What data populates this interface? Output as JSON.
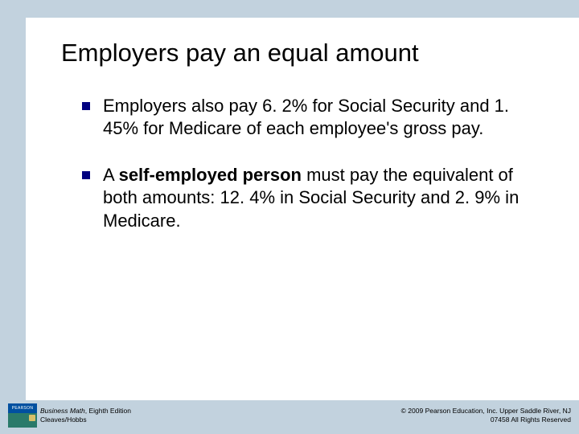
{
  "colors": {
    "slide_bg": "#ffffff",
    "page_bg": "#c2d2de",
    "bullet_marker": "#000080",
    "text": "#000000",
    "logo_top_bg": "#0050a0",
    "logo_bottom_bg": "#2a7a6a"
  },
  "title": "Employers pay an equal amount",
  "bullets": [
    {
      "text": "Employers also pay 6. 2% for Social Security and 1. 45% for Medicare of each employee's gross pay."
    },
    {
      "prefix": "A ",
      "bold": "self-employed person",
      "suffix": " must pay the equivalent of both amounts:  12. 4% in Social Security and 2. 9% in Medicare."
    }
  ],
  "footer": {
    "logo_text": "PEARSON",
    "book_title": "Business Math",
    "book_edition": ", Eighth Edition",
    "authors": "Cleaves/Hobbs",
    "copyright_line1": "© 2009 Pearson Education, Inc. Upper Saddle River, NJ",
    "copyright_line2": "07458  All Rights Reserved"
  }
}
